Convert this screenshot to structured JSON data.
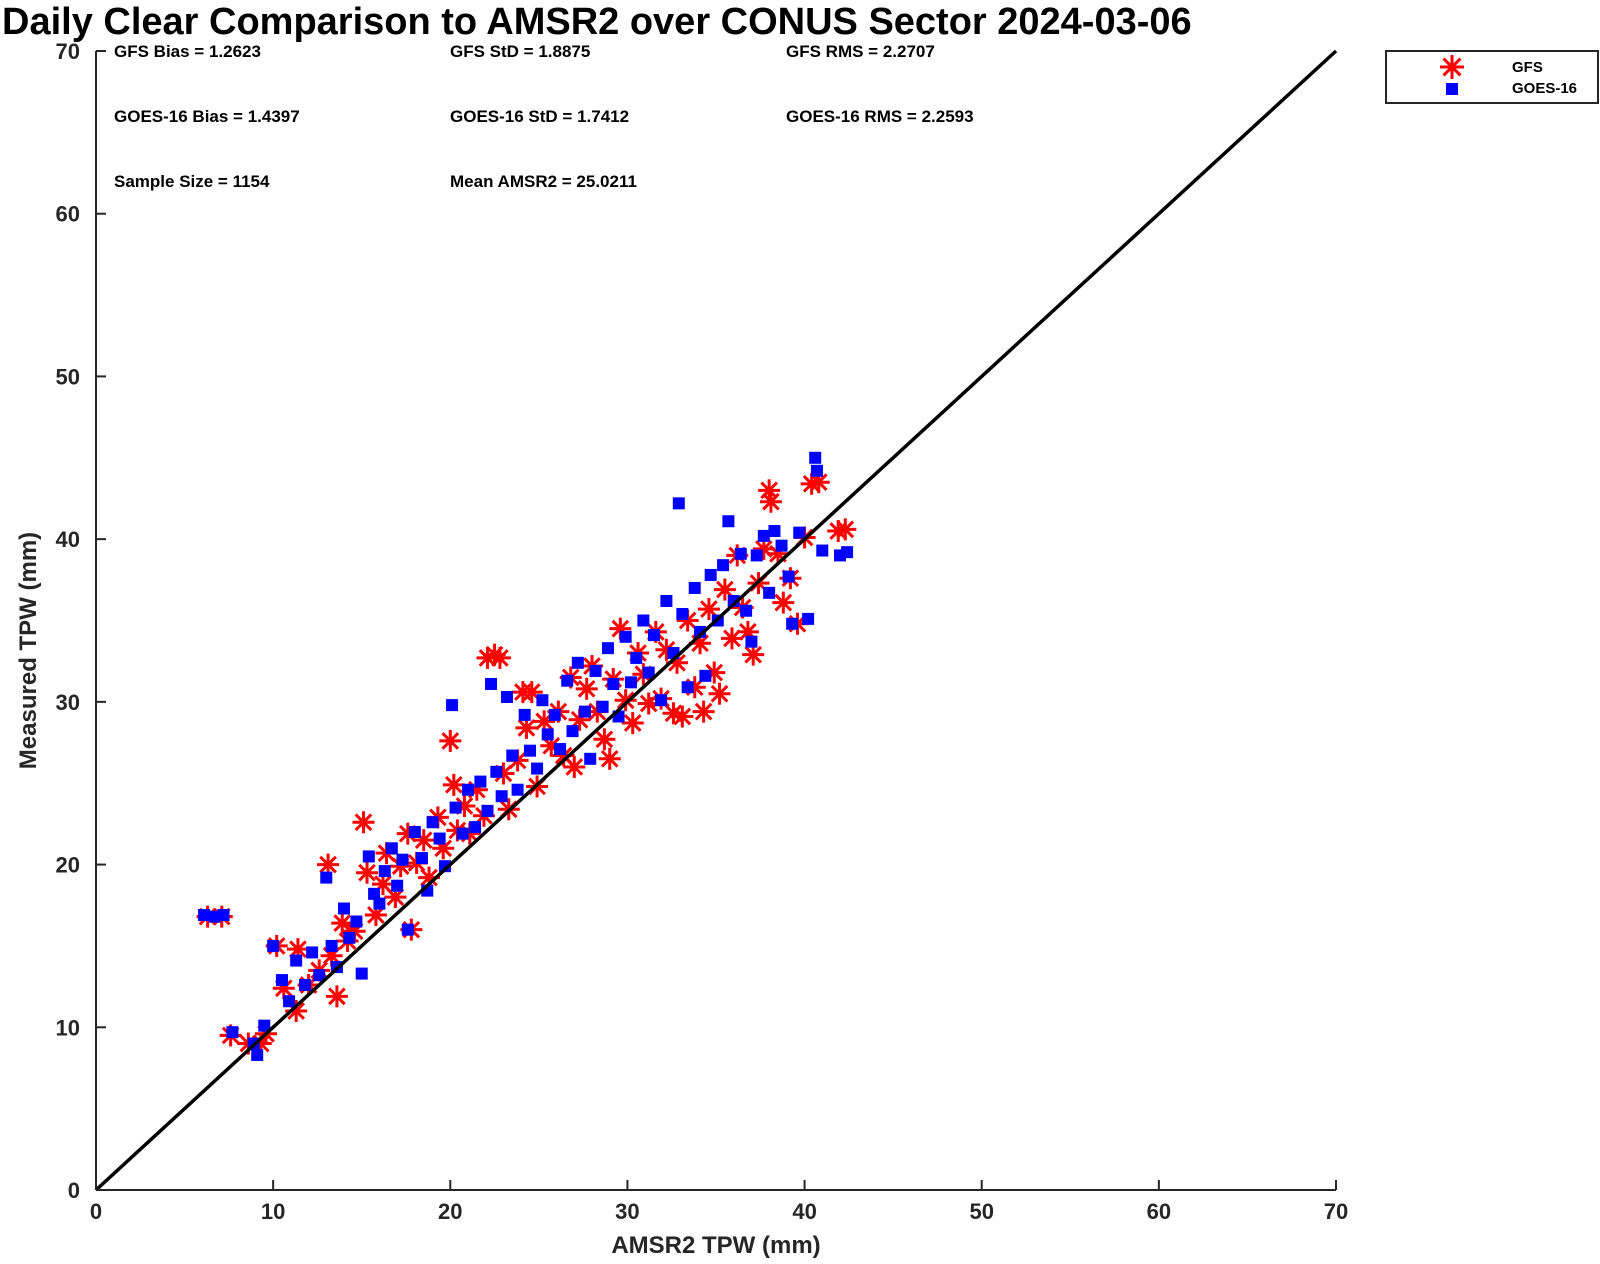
{
  "chart_data": {
    "type": "scatter",
    "title": "Daily Clear Comparison to AMSR2 over CONUS Sector 2024-03-06",
    "xlabel": "AMSR2 TPW (mm)",
    "ylabel": "Measured TPW (mm)",
    "xlim": [
      0,
      70
    ],
    "ylim": [
      0,
      70
    ],
    "xticks": [
      "0",
      "10",
      "20",
      "30",
      "40",
      "50",
      "60",
      "70"
    ],
    "yticks": [
      "0",
      "10",
      "20",
      "30",
      "40",
      "50",
      "60",
      "70"
    ],
    "grid": false,
    "legend_position": "top-right, outside plot area",
    "reference_line": {
      "type": "one-to-one",
      "from": [
        0,
        0
      ],
      "to": [
        70,
        70
      ],
      "color": "#000000"
    },
    "stats": [
      [
        "GFS Bias = 1.2623",
        "GFS StD = 1.8875",
        "GFS RMS = 2.2707"
      ],
      [
        "GOES-16 Bias = 1.4397",
        "GOES-16 StD = 1.7412",
        "GOES-16 RMS = 2.2593"
      ],
      [
        "Sample Size = 1154",
        "Mean AMSR2 = 25.0211"
      ]
    ],
    "series": [
      {
        "name": "GFS",
        "marker": "asterisk",
        "color": "#ff0000",
        "points": [
          [
            6.3,
            16.8
          ],
          [
            7.1,
            16.8
          ],
          [
            7.6,
            9.5
          ],
          [
            8.6,
            9.0
          ],
          [
            9.3,
            9.0
          ],
          [
            9.6,
            9.6
          ],
          [
            10.2,
            15.0
          ],
          [
            10.6,
            12.4
          ],
          [
            11.3,
            11.0
          ],
          [
            11.4,
            14.8
          ],
          [
            12.0,
            12.6
          ],
          [
            12.6,
            13.5
          ],
          [
            13.1,
            20.0
          ],
          [
            13.3,
            14.4
          ],
          [
            13.6,
            11.9
          ],
          [
            13.9,
            16.4
          ],
          [
            14.2,
            15.3
          ],
          [
            14.6,
            15.9
          ],
          [
            15.1,
            22.6
          ],
          [
            15.3,
            19.5
          ],
          [
            15.8,
            16.9
          ],
          [
            16.2,
            18.8
          ],
          [
            16.4,
            20.7
          ],
          [
            16.9,
            18.0
          ],
          [
            17.2,
            19.9
          ],
          [
            17.6,
            21.9
          ],
          [
            17.8,
            16.0
          ],
          [
            18.1,
            20.1
          ],
          [
            18.5,
            21.5
          ],
          [
            18.8,
            19.2
          ],
          [
            19.3,
            22.9
          ],
          [
            19.6,
            21.0
          ],
          [
            20.0,
            27.6
          ],
          [
            20.2,
            24.9
          ],
          [
            20.4,
            22.1
          ],
          [
            20.8,
            23.6
          ],
          [
            21.1,
            21.9
          ],
          [
            21.5,
            24.6
          ],
          [
            21.9,
            23.0
          ],
          [
            22.1,
            32.7
          ],
          [
            22.5,
            32.9
          ],
          [
            22.8,
            32.7
          ],
          [
            23.0,
            25.6
          ],
          [
            23.3,
            23.4
          ],
          [
            23.8,
            26.4
          ],
          [
            24.1,
            30.6
          ],
          [
            24.3,
            28.4
          ],
          [
            24.6,
            30.6
          ],
          [
            24.9,
            24.8
          ],
          [
            25.3,
            28.8
          ],
          [
            25.7,
            27.3
          ],
          [
            26.1,
            29.4
          ],
          [
            26.4,
            26.7
          ],
          [
            26.8,
            31.5
          ],
          [
            27.0,
            26.0
          ],
          [
            27.3,
            28.9
          ],
          [
            27.7,
            30.8
          ],
          [
            28.0,
            32.2
          ],
          [
            28.3,
            29.4
          ],
          [
            28.7,
            27.7
          ],
          [
            29.0,
            26.5
          ],
          [
            29.2,
            31.4
          ],
          [
            29.6,
            34.5
          ],
          [
            29.9,
            30.1
          ],
          [
            30.3,
            28.7
          ],
          [
            30.6,
            33.0
          ],
          [
            30.9,
            31.7
          ],
          [
            31.2,
            29.9
          ],
          [
            31.6,
            34.3
          ],
          [
            31.9,
            30.2
          ],
          [
            32.2,
            33.2
          ],
          [
            32.6,
            29.3
          ],
          [
            32.8,
            32.4
          ],
          [
            33.1,
            29.1
          ],
          [
            33.4,
            35.0
          ],
          [
            33.8,
            30.9
          ],
          [
            34.1,
            33.6
          ],
          [
            34.3,
            29.4
          ],
          [
            34.6,
            35.7
          ],
          [
            34.9,
            31.8
          ],
          [
            35.2,
            30.5
          ],
          [
            35.5,
            36.9
          ],
          [
            35.9,
            33.9
          ],
          [
            36.2,
            39.0
          ],
          [
            36.5,
            35.8
          ],
          [
            36.8,
            34.3
          ],
          [
            37.1,
            32.9
          ],
          [
            37.4,
            37.3
          ],
          [
            37.7,
            39.4
          ],
          [
            38.0,
            43.0
          ],
          [
            38.1,
            42.3
          ],
          [
            38.5,
            39.1
          ],
          [
            38.8,
            36.1
          ],
          [
            39.2,
            37.6
          ],
          [
            39.6,
            34.8
          ],
          [
            40.0,
            40.1
          ],
          [
            40.4,
            43.4
          ],
          [
            40.8,
            43.5
          ],
          [
            41.9,
            40.5
          ],
          [
            42.3,
            40.6
          ]
        ]
      },
      {
        "name": "GOES-16",
        "marker": "square",
        "color": "#0000ff",
        "points": [
          [
            6.1,
            16.9
          ],
          [
            6.7,
            16.8
          ],
          [
            7.2,
            16.9
          ],
          [
            7.7,
            9.7
          ],
          [
            8.9,
            9.0
          ],
          [
            9.1,
            8.3
          ],
          [
            9.5,
            10.1
          ],
          [
            10.0,
            15.0
          ],
          [
            10.5,
            12.9
          ],
          [
            10.9,
            11.6
          ],
          [
            11.3,
            14.1
          ],
          [
            11.8,
            12.6
          ],
          [
            12.2,
            14.6
          ],
          [
            12.6,
            13.2
          ],
          [
            13.0,
            19.2
          ],
          [
            13.3,
            15.0
          ],
          [
            13.6,
            13.7
          ],
          [
            14.0,
            17.3
          ],
          [
            14.3,
            15.5
          ],
          [
            14.7,
            16.5
          ],
          [
            15.0,
            13.3
          ],
          [
            15.4,
            20.5
          ],
          [
            15.7,
            18.2
          ],
          [
            16.0,
            17.6
          ],
          [
            16.3,
            19.6
          ],
          [
            16.7,
            21.0
          ],
          [
            17.0,
            18.7
          ],
          [
            17.3,
            20.3
          ],
          [
            17.6,
            16.0
          ],
          [
            18.0,
            22.0
          ],
          [
            18.4,
            20.4
          ],
          [
            18.7,
            18.4
          ],
          [
            19.0,
            22.6
          ],
          [
            19.4,
            21.6
          ],
          [
            19.7,
            19.9
          ],
          [
            20.1,
            29.8
          ],
          [
            20.3,
            23.5
          ],
          [
            20.7,
            21.9
          ],
          [
            21.0,
            24.6
          ],
          [
            21.4,
            22.3
          ],
          [
            21.7,
            25.1
          ],
          [
            22.1,
            23.3
          ],
          [
            22.3,
            31.1
          ],
          [
            22.6,
            25.7
          ],
          [
            22.9,
            24.2
          ],
          [
            23.2,
            30.3
          ],
          [
            23.5,
            26.7
          ],
          [
            23.8,
            24.6
          ],
          [
            24.2,
            29.2
          ],
          [
            24.5,
            27.0
          ],
          [
            24.9,
            25.9
          ],
          [
            25.2,
            30.1
          ],
          [
            25.5,
            28.0
          ],
          [
            25.9,
            29.2
          ],
          [
            26.2,
            27.1
          ],
          [
            26.6,
            31.3
          ],
          [
            26.9,
            28.2
          ],
          [
            27.2,
            32.4
          ],
          [
            27.6,
            29.4
          ],
          [
            27.9,
            26.5
          ],
          [
            28.2,
            31.9
          ],
          [
            28.6,
            29.7
          ],
          [
            28.9,
            33.3
          ],
          [
            29.2,
            31.1
          ],
          [
            29.5,
            29.1
          ],
          [
            29.9,
            34.0
          ],
          [
            30.2,
            31.2
          ],
          [
            30.5,
            32.7
          ],
          [
            30.9,
            35.0
          ],
          [
            31.2,
            31.8
          ],
          [
            31.5,
            34.1
          ],
          [
            31.9,
            30.1
          ],
          [
            32.2,
            36.2
          ],
          [
            32.6,
            33.0
          ],
          [
            32.9,
            42.2
          ],
          [
            33.1,
            35.4
          ],
          [
            33.4,
            30.9
          ],
          [
            33.8,
            37.0
          ],
          [
            34.1,
            34.3
          ],
          [
            34.4,
            31.6
          ],
          [
            34.7,
            37.8
          ],
          [
            35.1,
            35.0
          ],
          [
            35.4,
            38.4
          ],
          [
            35.7,
            41.1
          ],
          [
            36.0,
            36.2
          ],
          [
            36.4,
            39.1
          ],
          [
            36.7,
            35.6
          ],
          [
            37.0,
            33.7
          ],
          [
            37.3,
            39.0
          ],
          [
            37.7,
            40.2
          ],
          [
            38.0,
            36.7
          ],
          [
            38.3,
            40.5
          ],
          [
            38.7,
            39.6
          ],
          [
            39.1,
            37.7
          ],
          [
            39.3,
            34.8
          ],
          [
            39.7,
            40.4
          ],
          [
            40.2,
            35.1
          ],
          [
            40.6,
            45.0
          ],
          [
            40.7,
            44.2
          ],
          [
            41.0,
            39.3
          ],
          [
            42.0,
            39.0
          ],
          [
            42.4,
            39.2
          ]
        ]
      }
    ]
  }
}
